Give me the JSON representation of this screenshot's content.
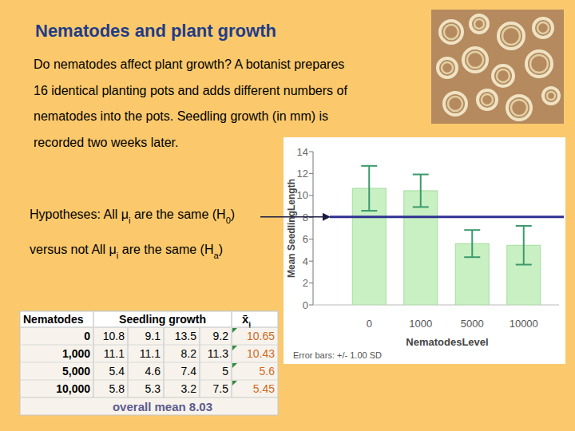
{
  "slide": {
    "title": "Nematodes and plant growth",
    "body": [
      "Do nematodes affect plant growth? A botanist prepares",
      "16 identical planting pots and adds different numbers of",
      "nematodes into the pots. Seedling growth (in mm) is",
      "recorded two weeks later."
    ],
    "hypotheses": [
      [
        {
          "text": "Hypotheses: All "
        },
        {
          "text": "μ"
        },
        {
          "text": "i",
          "sub": true
        },
        {
          "text": " are the same ("
        },
        {
          "text": "H"
        },
        {
          "text": "0",
          "sub": true
        },
        {
          "text": ")"
        }
      ],
      [
        {
          "text": "versus not All "
        },
        {
          "text": "μ"
        },
        {
          "text": "i",
          "sub": true
        },
        {
          "text": " are the same ("
        },
        {
          "text": "H"
        },
        {
          "text": "a",
          "sub": true
        },
        {
          "text": ")"
        }
      ]
    ],
    "table": {
      "header": [
        "Nematodes",
        "Seedling growth"
      ],
      "mean_header": [
        {
          "text": "x̄"
        },
        {
          "text": "i",
          "sub": true
        }
      ],
      "rows": [
        [
          "0",
          "10.8",
          "9.1",
          "13.5",
          "9.2",
          "10.65"
        ],
        [
          "1,000",
          "11.1",
          "11.1",
          "8.2",
          "11.3",
          "10.43"
        ],
        [
          "5,000",
          "5.4",
          "4.6",
          "7.4",
          "5",
          "5.6"
        ],
        [
          "10,000",
          "5.8",
          "5.3",
          "3.2",
          "7.5",
          "5.45"
        ]
      ],
      "footer": "overall mean 8.03"
    }
  },
  "chart_data": {
    "type": "bar",
    "categories": [
      "0",
      "1000",
      "5000",
      "10000"
    ],
    "values": [
      10.65,
      10.43,
      5.6,
      5.45
    ],
    "errors": [
      2.05,
      1.49,
      1.24,
      1.77
    ],
    "color": "#c8f0c2",
    "ylim": [
      0,
      14
    ],
    "yticks": [
      0,
      2,
      4,
      6,
      8,
      10,
      12,
      14
    ],
    "x_label": "NematodesLevel",
    "y_label": "Mean SeedlingLength",
    "note": "Error bars: +/- 1.00 SD",
    "overall_mean": 8.03,
    "grid": false
  }
}
